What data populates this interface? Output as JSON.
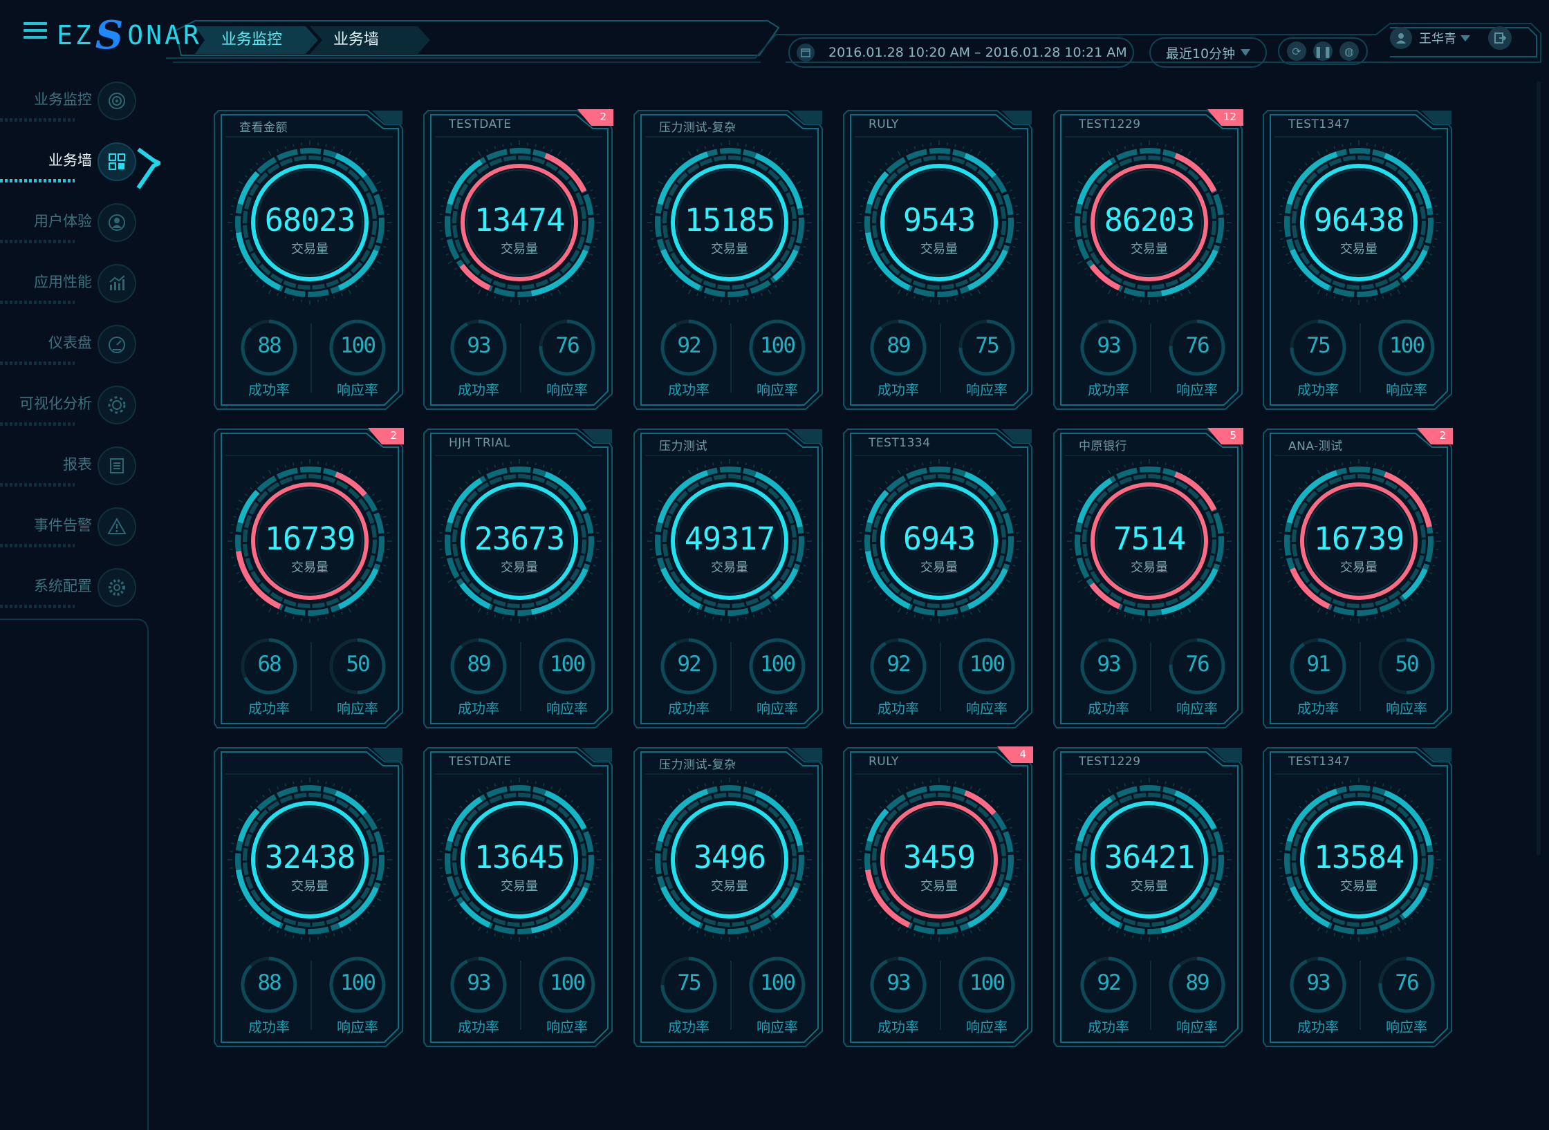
{
  "header": {
    "logo": {
      "pre": "EZ",
      "s": "S",
      "post": "ONAR"
    },
    "breadcrumbs": [
      "业务监控",
      "业务墙"
    ],
    "time_range": "2016.01.28 10:20 AM – 2016.01.28 10:21 AM",
    "range_select": "最近10分钟",
    "controls": [
      "refresh-icon",
      "pause-icon",
      "globe-icon"
    ],
    "user": "王华青"
  },
  "sidebar": {
    "items": [
      {
        "label": "业务监控",
        "icon": "target-icon",
        "active": false
      },
      {
        "label": "业务墙",
        "icon": "qr-grid-icon",
        "active": true
      },
      {
        "label": "用户体验",
        "icon": "user-icon",
        "active": false
      },
      {
        "label": "应用性能",
        "icon": "chart-icon",
        "active": false
      },
      {
        "label": "仪表盘",
        "icon": "speedometer-icon",
        "active": false
      },
      {
        "label": "可视化分析",
        "icon": "gear-icon",
        "active": false
      },
      {
        "label": "报表",
        "icon": "report-icon",
        "active": false
      },
      {
        "label": "事件告警",
        "icon": "warning-icon",
        "active": false
      },
      {
        "label": "系统配置",
        "icon": "settings-icon",
        "active": false
      }
    ]
  },
  "colors": {
    "ok": "#1fe1f0",
    "alert": "#ff6b84",
    "frame": "#0f6f80",
    "bg": "#050f1e"
  },
  "labels": {
    "volume": "交易量",
    "success": "成功率",
    "response": "响应率"
  },
  "cards": [
    {
      "title": "查看金额",
      "badge": "",
      "value": "68023",
      "success": "88",
      "response": "100",
      "alert": false
    },
    {
      "title": "TESTDATE",
      "badge": "2",
      "value": "13474",
      "success": "93",
      "response": "76",
      "alert": true
    },
    {
      "title": "压力测试-复杂",
      "badge": "",
      "value": "15185",
      "success": "92",
      "response": "100",
      "alert": false
    },
    {
      "title": "RULY",
      "badge": "",
      "value": "9543",
      "success": "89",
      "response": "75",
      "alert": false
    },
    {
      "title": "TEST1229",
      "badge": "12",
      "value": "86203",
      "success": "93",
      "response": "76",
      "alert": true
    },
    {
      "title": "TEST1347",
      "badge": "",
      "value": "96438",
      "success": "75",
      "response": "100",
      "alert": false
    },
    {
      "title": "",
      "badge": "2",
      "value": "16739",
      "success": "68",
      "response": "50",
      "alert": true
    },
    {
      "title": "HJH TRIAL",
      "badge": "",
      "value": "23673",
      "success": "89",
      "response": "100",
      "alert": false
    },
    {
      "title": "压力测试",
      "badge": "",
      "value": "49317",
      "success": "92",
      "response": "100",
      "alert": false
    },
    {
      "title": "TEST1334",
      "badge": "",
      "value": "6943",
      "success": "92",
      "response": "100",
      "alert": false
    },
    {
      "title": "中原银行",
      "badge": "5",
      "value": "7514",
      "success": "93",
      "response": "76",
      "alert": true
    },
    {
      "title": "ANA-测试",
      "badge": "2",
      "value": "16739",
      "success": "91",
      "response": "50",
      "alert": true
    },
    {
      "title": "",
      "badge": "",
      "value": "32438",
      "success": "88",
      "response": "100",
      "alert": false
    },
    {
      "title": "TESTDATE",
      "badge": "",
      "value": "13645",
      "success": "93",
      "response": "100",
      "alert": false
    },
    {
      "title": "压力测试-复杂",
      "badge": "",
      "value": "3496",
      "success": "75",
      "response": "100",
      "alert": false
    },
    {
      "title": "RULY",
      "badge": "4",
      "value": "3459",
      "success": "93",
      "response": "100",
      "alert": true
    },
    {
      "title": "TEST1229",
      "badge": "",
      "value": "36421",
      "success": "92",
      "response": "89",
      "alert": false
    },
    {
      "title": "TEST1347",
      "badge": "",
      "value": "13584",
      "success": "93",
      "response": "76",
      "alert": false
    }
  ]
}
